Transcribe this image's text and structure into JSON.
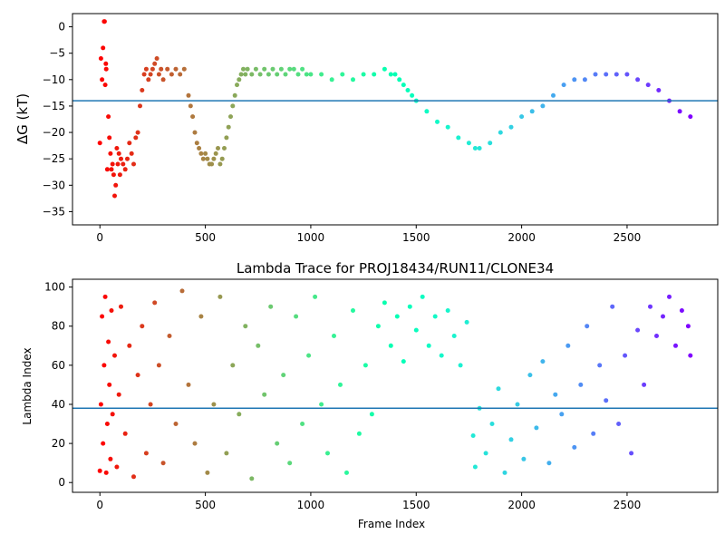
{
  "chart_data": [
    {
      "type": "scatter",
      "title": "",
      "xlabel": "",
      "ylabel": "ΔG (kT)",
      "xlim": [
        -130,
        2930
      ],
      "ylim": [
        -37.5,
        2.5
      ],
      "xticks": [
        0,
        500,
        1000,
        1500,
        2000,
        2500
      ],
      "yticks": [
        0,
        -5,
        -10,
        -15,
        -20,
        -25,
        -30,
        -35
      ],
      "hline": -14,
      "hline_color": "#1f77b4",
      "colormap": "rainbow (red at frame 0 → violet at last frame)",
      "grid": false,
      "series": [
        {
          "x": [
            0,
            5,
            10,
            15,
            20,
            22,
            25,
            28,
            30,
            35,
            40,
            45,
            50,
            55,
            60,
            65,
            70,
            75,
            80,
            85,
            90,
            95,
            100,
            110,
            120,
            130,
            140,
            150,
            160,
            170,
            180,
            190,
            200,
            210,
            220,
            230,
            240,
            250,
            260,
            270,
            280,
            290,
            300,
            320,
            340,
            360,
            380,
            400,
            420,
            430,
            440,
            450,
            460,
            470,
            480,
            490,
            500,
            510,
            520,
            530,
            540,
            550,
            560,
            570,
            580,
            590,
            600,
            610,
            620,
            630,
            640,
            650,
            660,
            670,
            680,
            690,
            700,
            720,
            740,
            760,
            780,
            800,
            820,
            840,
            860,
            880,
            900,
            920,
            940,
            960,
            980,
            1000,
            1050,
            1100,
            1150,
            1200,
            1250,
            1300,
            1350,
            1380,
            1400,
            1420,
            1440,
            1460,
            1480,
            1500,
            1550,
            1600,
            1650,
            1700,
            1750,
            1780,
            1800,
            1850,
            1900,
            1950,
            2000,
            2050,
            2100,
            2150,
            2200,
            2250,
            2300,
            2350,
            2400,
            2450,
            2500,
            2550,
            2600,
            2650,
            2700,
            2750,
            2800
          ],
          "y": [
            -22,
            -6,
            -10,
            -4,
            1,
            1,
            -11,
            -7,
            -8,
            -27,
            -17,
            -21,
            -24,
            -27,
            -26,
            -28,
            -32,
            -30,
            -23,
            -26,
            -24,
            -28,
            -25,
            -26,
            -27,
            -25,
            -22,
            -24,
            -26,
            -21,
            -20,
            -15,
            -12,
            -9,
            -8,
            -10,
            -9,
            -8,
            -7,
            -6,
            -9,
            -8,
            -10,
            -8,
            -9,
            -8,
            -9,
            -8,
            -13,
            -15,
            -17,
            -20,
            -22,
            -23,
            -24,
            -25,
            -24,
            -25,
            -26,
            -26,
            -25,
            -24,
            -23,
            -26,
            -25,
            -23,
            -21,
            -19,
            -17,
            -15,
            -13,
            -11,
            -10,
            -9,
            -8,
            -9,
            -8,
            -9,
            -8,
            -9,
            -8,
            -9,
            -8,
            -9,
            -8,
            -9,
            -8,
            -8,
            -9,
            -8,
            -9,
            -9,
            -9,
            -10,
            -9,
            -10,
            -9,
            -9,
            -8,
            -9,
            -9,
            -10,
            -11,
            -12,
            -13,
            -14,
            -16,
            -18,
            -19,
            -21,
            -22,
            -23,
            -23,
            -22,
            -20,
            -19,
            -17,
            -16,
            -15,
            -13,
            -11,
            -10,
            -10,
            -9,
            -9,
            -9,
            -9,
            -10,
            -11,
            -12,
            -14,
            -16,
            -17
          ]
        }
      ]
    },
    {
      "type": "scatter",
      "title": "Lambda Trace for PROJ18434/RUN11/CLONE34",
      "xlabel": "Frame Index",
      "ylabel": "Lambda Index",
      "xlim": [
        -130,
        2930
      ],
      "ylim": [
        -5,
        104
      ],
      "xticks": [
        0,
        500,
        1000,
        1500,
        2000,
        2500
      ],
      "yticks": [
        0,
        20,
        40,
        60,
        80,
        100
      ],
      "hline": 38,
      "hline_color": "#1f77b4",
      "colormap": "rainbow (red at frame 0 → violet at last frame)",
      "grid": false,
      "series": [
        {
          "x": [
            0,
            5,
            10,
            15,
            20,
            25,
            30,
            35,
            40,
            45,
            50,
            55,
            60,
            70,
            80,
            90,
            100,
            120,
            140,
            160,
            180,
            200,
            220,
            240,
            260,
            280,
            300,
            330,
            360,
            390,
            420,
            450,
            480,
            510,
            540,
            570,
            600,
            630,
            660,
            690,
            720,
            750,
            780,
            810,
            840,
            870,
            900,
            930,
            960,
            990,
            1020,
            1050,
            1080,
            1110,
            1140,
            1170,
            1200,
            1230,
            1260,
            1290,
            1320,
            1350,
            1380,
            1410,
            1440,
            1470,
            1500,
            1530,
            1560,
            1590,
            1620,
            1650,
            1680,
            1710,
            1740,
            1770,
            1780,
            1800,
            1830,
            1860,
            1890,
            1920,
            1950,
            1980,
            2010,
            2040,
            2070,
            2100,
            2130,
            2160,
            2190,
            2220,
            2250,
            2280,
            2310,
            2340,
            2370,
            2400,
            2430,
            2460,
            2490,
            2520,
            2550,
            2580,
            2610,
            2640,
            2670,
            2700,
            2730,
            2760,
            2790,
            2800
          ],
          "y": [
            6,
            40,
            85,
            20,
            60,
            95,
            5,
            30,
            72,
            50,
            12,
            88,
            35,
            65,
            8,
            45,
            90,
            25,
            70,
            3,
            55,
            80,
            15,
            40,
            92,
            60,
            10,
            75,
            30,
            98,
            50,
            20,
            85,
            5,
            40,
            95,
            15,
            60,
            35,
            80,
            2,
            70,
            45,
            90,
            20,
            55,
            10,
            85,
            30,
            65,
            95,
            40,
            15,
            75,
            50,
            5,
            88,
            25,
            60,
            35,
            80,
            92,
            70,
            85,
            62,
            90,
            78,
            95,
            70,
            85,
            65,
            88,
            75,
            60,
            82,
            24,
            8,
            38,
            15,
            30,
            48,
            5,
            22,
            40,
            12,
            55,
            28,
            62,
            10,
            45,
            35,
            70,
            18,
            50,
            80,
            25,
            60,
            42,
            90,
            30,
            65,
            15,
            78,
            50,
            90,
            75,
            85,
            95,
            70,
            88,
            80,
            65
          ]
        }
      ]
    }
  ]
}
